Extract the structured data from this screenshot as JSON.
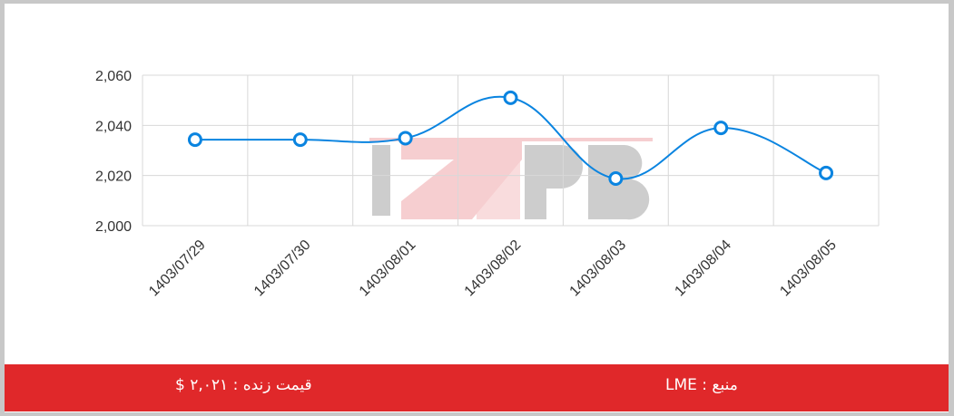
{
  "chart_data": {
    "type": "line",
    "categories": [
      "1403/07/29",
      "1403/07/30",
      "1403/08/01",
      "1403/08/02",
      "1403/08/03",
      "1403/08/04",
      "1403/08/05"
    ],
    "values": [
      2034.3,
      2034.3,
      2034.9,
      2051,
      2018.8,
      2039,
      2021
    ],
    "ylim": [
      2000,
      2060
    ],
    "yticks": [
      2000,
      2020,
      2040,
      2060
    ],
    "ytick_labels": [
      "2,000",
      "2,020",
      "2,040",
      "2,060"
    ],
    "grid": true,
    "smooth": true,
    "line_color": "#0a84e0",
    "watermark": "IZNPB"
  },
  "footer": {
    "live_price": "قیمت زنده : ۲,۰۲۱ $",
    "source": "منبع : LME",
    "background": "#e0282a"
  }
}
